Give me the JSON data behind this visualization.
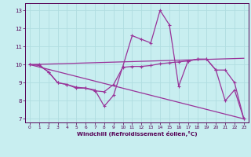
{
  "xlabel": "Windchill (Refroidissement éolien,°C)",
  "bg_color": "#c8eef0",
  "line_color": "#993399",
  "grid_color": "#b0dde0",
  "xlim": [
    -0.5,
    23.5
  ],
  "ylim": [
    6.8,
    13.4
  ],
  "yticks": [
    7,
    8,
    9,
    10,
    11,
    12,
    13
  ],
  "xticks": [
    0,
    1,
    2,
    3,
    4,
    5,
    6,
    7,
    8,
    9,
    10,
    11,
    12,
    13,
    14,
    15,
    16,
    17,
    18,
    19,
    20,
    21,
    22,
    23
  ],
  "line1_x": [
    0,
    1,
    2,
    3,
    4,
    5,
    6,
    7,
    8,
    9,
    10,
    11,
    12,
    13,
    14,
    15,
    16,
    17,
    18,
    19,
    20,
    21,
    22,
    23
  ],
  "line1_y": [
    10.0,
    10.0,
    9.6,
    9.0,
    8.9,
    8.7,
    8.7,
    8.6,
    7.7,
    8.3,
    9.9,
    11.6,
    11.4,
    11.2,
    13.0,
    12.2,
    8.8,
    10.2,
    10.3,
    10.3,
    9.7,
    8.0,
    8.6,
    7.0
  ],
  "line2_x": [
    0,
    1,
    2,
    3,
    4,
    5,
    6,
    7,
    8,
    9,
    10,
    11,
    12,
    13,
    14,
    15,
    16,
    17,
    18,
    19,
    20,
    21,
    22,
    23
  ],
  "line2_y": [
    10.0,
    9.95,
    9.6,
    9.0,
    8.9,
    8.75,
    8.7,
    8.55,
    8.5,
    8.9,
    9.85,
    9.9,
    9.9,
    9.95,
    10.05,
    10.1,
    10.15,
    10.2,
    10.3,
    10.3,
    9.7,
    9.7,
    9.0,
    7.0
  ],
  "line3_x": [
    0,
    23
  ],
  "line3_y": [
    10.0,
    7.0
  ],
  "line4_x": [
    0,
    23
  ],
  "line4_y": [
    10.0,
    10.35
  ]
}
